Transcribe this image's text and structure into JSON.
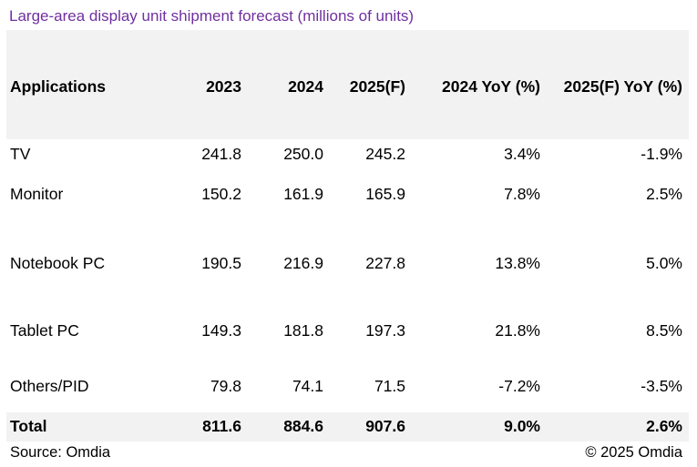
{
  "title": "Large-area display unit shipment forecast (millions of units)",
  "table": {
    "headers": [
      "Applications",
      "2023",
      "2024",
      "2025(F)",
      "2024 YoY (%)",
      "2025(F) YoY (%)"
    ],
    "rows": [
      [
        "TV",
        "241.8",
        "250.0",
        "245.2",
        "3.4%",
        "-1.9%"
      ],
      [
        "Monitor",
        "150.2",
        "161.9",
        "165.9",
        "7.8%",
        "2.5%"
      ],
      [
        "Notebook PC",
        "190.5",
        "216.9",
        "227.8",
        "13.8%",
        "5.0%"
      ],
      [
        "Tablet PC",
        "149.3",
        "181.8",
        "197.3",
        "21.8%",
        "8.5%"
      ],
      [
        "Others/PID",
        "79.8",
        "74.1",
        "71.5",
        "-7.2%",
        "-3.5%"
      ]
    ],
    "total": [
      "Total",
      "811.6",
      "884.6",
      "907.6",
      "9.0%",
      "2.6%"
    ]
  },
  "footer": {
    "source": "Source: Omdia",
    "copyright": "© 2025 Omdia"
  },
  "colors": {
    "title": "#7030a0",
    "band": "#f2f2f2"
  }
}
